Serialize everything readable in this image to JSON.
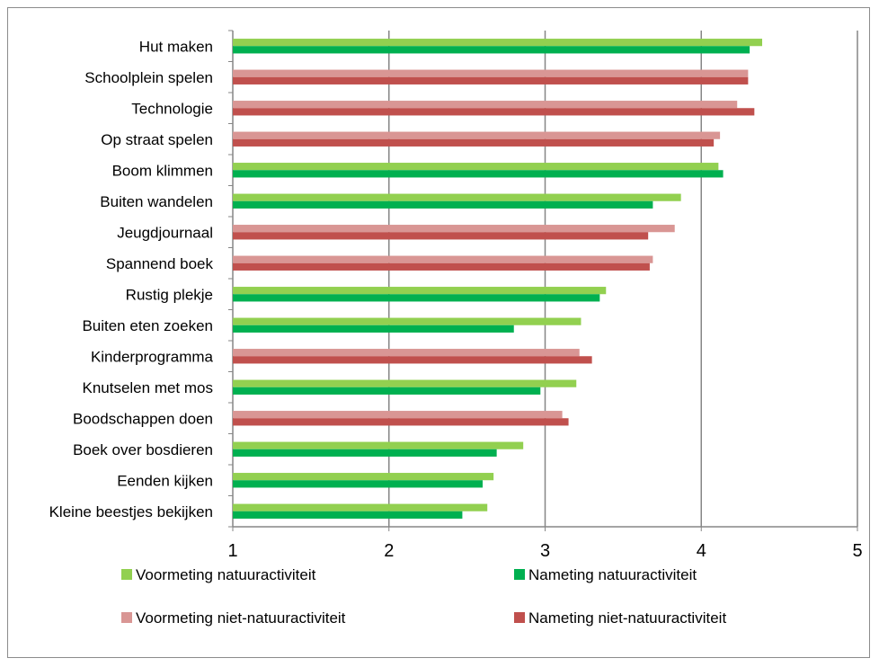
{
  "chart_data": {
    "type": "bar",
    "orientation": "horizontal",
    "title": "",
    "xlabel": "",
    "ylabel": "",
    "xlim": [
      1,
      5
    ],
    "xticks": [
      1,
      2,
      3,
      4,
      5
    ],
    "grid": "vertical",
    "legend_position": "bottom",
    "categories": [
      "Hut maken",
      "Schoolplein spelen",
      "Technologie",
      "Op straat spelen",
      "Boom klimmen",
      "Buiten wandelen",
      "Jeugdjournaal",
      "Spannend boek",
      "Rustig plekje",
      "Buiten eten zoeken",
      "Kinderprogramma",
      "Knutselen met mos",
      "Boodschappen doen",
      "Boek over bosdieren",
      "Eenden kijken",
      "Kleine beestjes bekijken"
    ],
    "series": [
      {
        "name": "Voormeting natuuractiviteit",
        "color": "#92d050",
        "values": [
          4.39,
          null,
          null,
          null,
          4.11,
          3.87,
          null,
          null,
          3.39,
          3.23,
          null,
          3.2,
          null,
          2.86,
          2.67,
          2.63
        ]
      },
      {
        "name": "Nameting natuuractiviteit",
        "color": "#00b050",
        "values": [
          4.31,
          null,
          null,
          null,
          4.14,
          3.69,
          null,
          null,
          3.35,
          2.8,
          null,
          2.97,
          null,
          2.69,
          2.6,
          2.47
        ]
      },
      {
        "name": "Voormeting niet-natuuractiviteit",
        "color": "#d99694",
        "values": [
          null,
          4.3,
          4.23,
          4.12,
          null,
          null,
          3.83,
          3.69,
          null,
          null,
          3.22,
          null,
          3.11,
          null,
          null,
          null
        ]
      },
      {
        "name": "Nameting niet-natuuractiviteit",
        "color": "#c0504d",
        "values": [
          null,
          4.3,
          4.34,
          4.08,
          null,
          null,
          3.66,
          3.67,
          null,
          null,
          3.3,
          null,
          3.15,
          null,
          null,
          null
        ]
      }
    ]
  }
}
